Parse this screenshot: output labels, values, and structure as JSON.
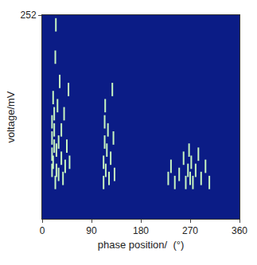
{
  "chart_data": {
    "type": "scatter",
    "x_label": "phase position/  (°)",
    "y_label": "voltage/mV",
    "xlim": [
      0,
      360
    ],
    "xticks": [
      0,
      90,
      180,
      270,
      360
    ],
    "ylim": [
      0,
      252
    ],
    "yticks": [
      252
    ],
    "grid": false,
    "marker": "line-ns",
    "color": "#c8f5c0",
    "x": [
      18,
      18,
      18,
      18,
      20,
      20,
      22,
      22,
      22,
      24,
      24,
      25,
      26,
      26,
      28,
      30,
      30,
      32,
      35,
      35,
      38,
      40,
      42,
      45,
      48,
      50,
      112,
      112,
      114,
      114,
      115,
      116,
      118,
      120,
      122,
      125,
      128,
      130,
      132,
      230,
      235,
      242,
      250,
      258,
      262,
      266,
      268,
      270,
      272,
      275,
      280,
      285,
      290,
      298,
      305
    ],
    "y": [
      60,
      80,
      100,
      120,
      70,
      150,
      90,
      110,
      130,
      45,
      200,
      240,
      60,
      85,
      140,
      55,
      95,
      170,
      75,
      110,
      50,
      130,
      65,
      90,
      160,
      70,
      45,
      70,
      95,
      120,
      140,
      60,
      85,
      110,
      50,
      75,
      160,
      100,
      55,
      50,
      65,
      45,
      55,
      75,
      45,
      60,
      85,
      50,
      70,
      45,
      60,
      80,
      50,
      65,
      45
    ]
  }
}
